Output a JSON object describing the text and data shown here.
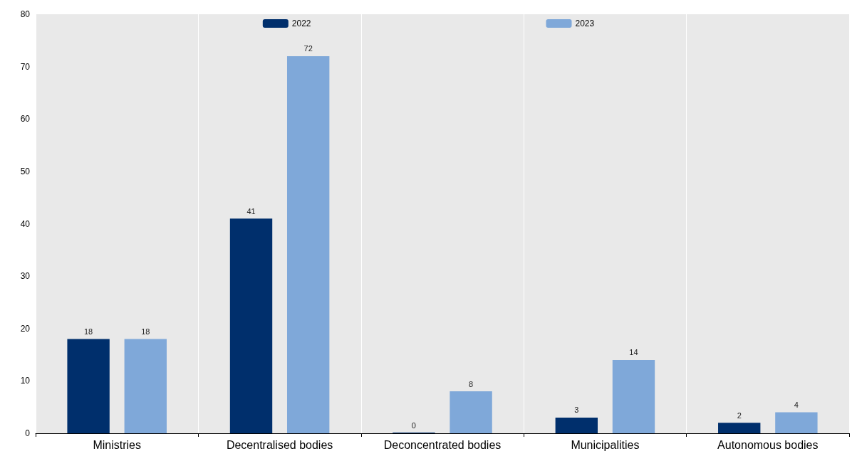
{
  "chart_data": {
    "type": "bar",
    "categories": [
      "Ministries",
      "Decentralised bodies",
      "Deconcentrated bodies",
      "Municipalities",
      "Autonomous bodies"
    ],
    "series": [
      {
        "name": "2022",
        "color": "#002f6c",
        "values": [
          18,
          41,
          0,
          3,
          2
        ]
      },
      {
        "name": "2023",
        "color": "#7fa8d9",
        "values": [
          18,
          72,
          8,
          14,
          4
        ]
      }
    ],
    "ylim": [
      0,
      80
    ],
    "yticks": [
      0,
      10,
      20,
      30,
      40,
      50,
      60,
      70,
      80
    ],
    "grid": "x",
    "legend": "top",
    "data_labels": true
  }
}
